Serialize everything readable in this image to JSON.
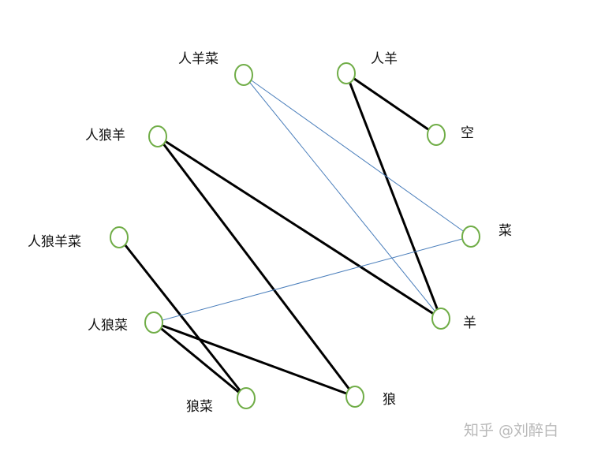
{
  "nodes": [
    {
      "id": "rsc",
      "label": "人羊菜"
    },
    {
      "id": "rs",
      "label": "人羊"
    },
    {
      "id": "rls",
      "label": "人狼羊"
    },
    {
      "id": "kong",
      "label": "空"
    },
    {
      "id": "rlsc",
      "label": "人狼羊菜"
    },
    {
      "id": "cai",
      "label": "菜"
    },
    {
      "id": "rlc",
      "label": "人狼菜"
    },
    {
      "id": "yang",
      "label": "羊"
    },
    {
      "id": "lc",
      "label": "狼菜"
    },
    {
      "id": "lang",
      "label": "狼"
    }
  ],
  "edges": [
    {
      "from": "rs",
      "to": "kong",
      "style": "bold"
    },
    {
      "from": "rs",
      "to": "yang",
      "style": "bold"
    },
    {
      "from": "rls",
      "to": "yang",
      "style": "bold"
    },
    {
      "from": "rls",
      "to": "lang",
      "style": "bold"
    },
    {
      "from": "rlsc",
      "to": "lc",
      "style": "bold"
    },
    {
      "from": "rlc",
      "to": "lc",
      "style": "bold"
    },
    {
      "from": "rlc",
      "to": "lang",
      "style": "bold"
    },
    {
      "from": "rsc",
      "to": "cai",
      "style": "thin"
    },
    {
      "from": "rsc",
      "to": "yang",
      "style": "thin"
    },
    {
      "from": "rlc",
      "to": "cai",
      "style": "thin"
    }
  ],
  "colors": {
    "node_stroke": "#70ad47",
    "bold_edge": "#000000",
    "thin_edge": "#4a7ebb"
  },
  "watermark": "知乎 @刘醉白"
}
